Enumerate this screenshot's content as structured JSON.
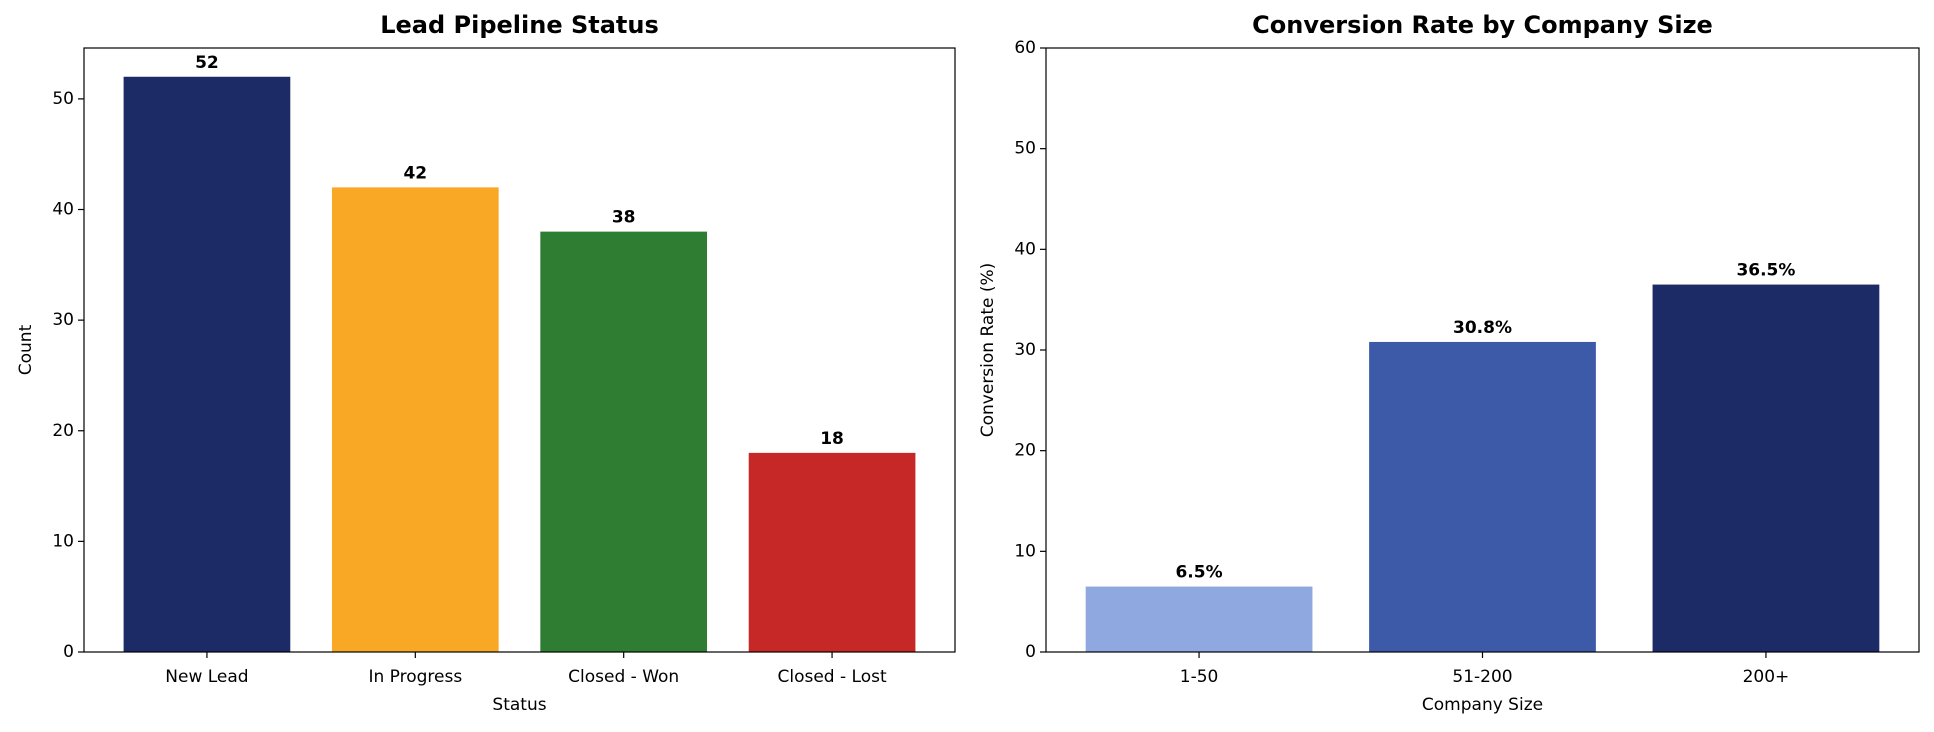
{
  "chart_data": [
    {
      "type": "bar",
      "title": "Lead Pipeline Status",
      "xlabel": "Status",
      "ylabel": "Count",
      "categories": [
        "New Lead",
        "In Progress",
        "Closed - Won",
        "Closed - Lost"
      ],
      "values": [
        52,
        42,
        38,
        18
      ],
      "colors": [
        "#1c2a66",
        "#f8a825",
        "#2e7d32",
        "#c62828"
      ],
      "ylim": [
        0,
        54.6
      ],
      "yticks": [
        0,
        10,
        20,
        30,
        40,
        50
      ]
    },
    {
      "type": "bar",
      "title": "Conversion Rate by Company Size",
      "xlabel": "Company Size",
      "ylabel": "Conversion Rate (%)",
      "categories": [
        "1-50",
        "51-200",
        "200+"
      ],
      "values": [
        6.5,
        30.8,
        36.5
      ],
      "value_labels": [
        "6.5%",
        "30.8%",
        "36.5%"
      ],
      "colors": [
        "#8fa8df",
        "#3c5aa8",
        "#1c2a66"
      ],
      "ylim": [
        0,
        60
      ],
      "yticks": [
        0,
        10,
        20,
        30,
        40,
        50,
        60
      ]
    }
  ]
}
